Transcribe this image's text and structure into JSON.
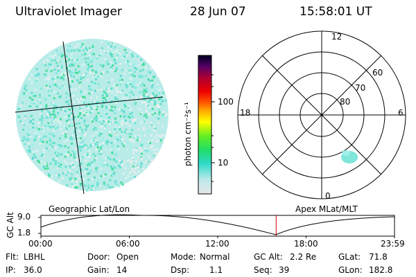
{
  "header": {
    "instrument": "Ultraviolet Imager",
    "date": "28 Jun 07",
    "time": "15:58:01 UT"
  },
  "colorbar": {
    "unit_label": "photon cm⁻²s⁻¹",
    "ticks": [
      "100",
      "10"
    ]
  },
  "polar_plot": {
    "mlt_labels": {
      "top": "12",
      "left": "18",
      "right": "6",
      "bottom": "0"
    },
    "lat_labels": [
      "60",
      "70",
      "80"
    ]
  },
  "panels": {
    "left_caption": "Geographic Lat/Lon",
    "right_caption": "Apex MLat/MLT"
  },
  "timeline": {
    "ylabel": "GC Alt",
    "ytick_top": "9.0",
    "ytick_bottom": "1.8",
    "xticks": [
      "00:00",
      "06:00",
      "12:00",
      "18:00",
      "23:59"
    ],
    "current_time_fraction": 0.6653
  },
  "info": {
    "flt_label": "Flt:",
    "flt_value": "LBHL",
    "door_label": "Door:",
    "door_value": "Open",
    "mode_label": "Mode:",
    "mode_value": "Normal",
    "gcalt_label": "GC Alt:",
    "gcalt_value": "2.2 Re",
    "glat_label": "GLat:",
    "glat_value": "71.8",
    "ip_label": "IP:",
    "ip_value": "36.0",
    "gain_label": "Gain:",
    "gain_value": "14",
    "dsp_label": "Dsp:",
    "dsp_value": "1.1",
    "seq_label": "Seq:",
    "seq_value": "39",
    "glon_label": "GLon:",
    "glon_value": "182.8"
  },
  "colors": {
    "auroral_cyan": "#7fe6dc",
    "auroral_green": "#33dd88",
    "marker_red": "#cc0000"
  }
}
